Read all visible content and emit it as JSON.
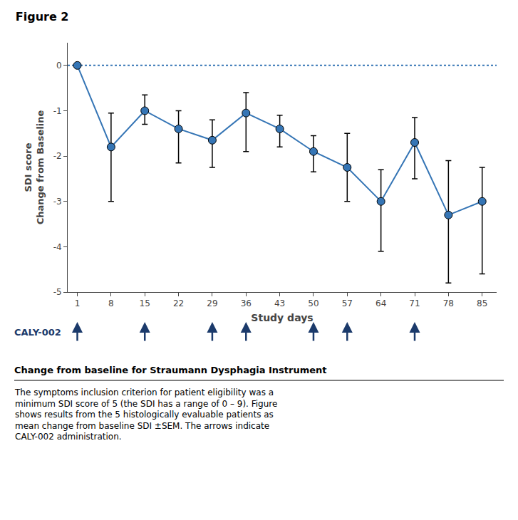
{
  "chart_data": {
    "type": "line",
    "title": "Figure 2",
    "x_label": "Study days",
    "y_label": "SDI score\nChange from Baseline",
    "x": [
      1,
      8,
      15,
      22,
      29,
      36,
      43,
      50,
      57,
      64,
      71,
      78,
      85
    ],
    "series": [
      {
        "values": [
          0.0,
          -1.8,
          -1.0,
          -1.4,
          -1.65,
          -1.05,
          -1.4,
          -1.9,
          -2.25,
          -3.0,
          -1.7,
          -3.3,
          -3.0
        ],
        "error_upper": [
          0.0,
          0.75,
          0.35,
          0.4,
          0.45,
          0.45,
          0.3,
          0.35,
          0.75,
          0.7,
          0.55,
          1.2,
          0.75
        ],
        "error_lower": [
          0.0,
          1.2,
          0.3,
          0.75,
          0.6,
          0.85,
          0.4,
          0.45,
          0.75,
          1.1,
          0.8,
          1.5,
          1.6
        ],
        "color": "#3575B5",
        "marker": "circle",
        "line_style": "solid"
      }
    ],
    "reference_line": 0,
    "xlim": [
      -1,
      88
    ],
    "ylim": [
      -5,
      0.5
    ],
    "xticks": [
      1,
      8,
      15,
      22,
      29,
      36,
      43,
      50,
      57,
      64,
      71,
      78,
      85
    ],
    "yticks": [
      0,
      -1,
      -2,
      -3,
      -4,
      -5
    ],
    "grid": false,
    "dose_label": "CALY-002",
    "dose_days": [
      1,
      15,
      29,
      36,
      50,
      57,
      71
    ],
    "caption_title": "Change from baseline for Straumann Dysphagia Instrument",
    "caption_body": "The symptoms inclusion criterion for patient eligibility was a\nminimum SDI score of 5 (the SDI has a range of 0 – 9). Figure\nshows results from the 5 histologically evaluable patients as\nmean change from baseline SDI ±SEM. The arrows indicate\nCALY-002 administration."
  }
}
